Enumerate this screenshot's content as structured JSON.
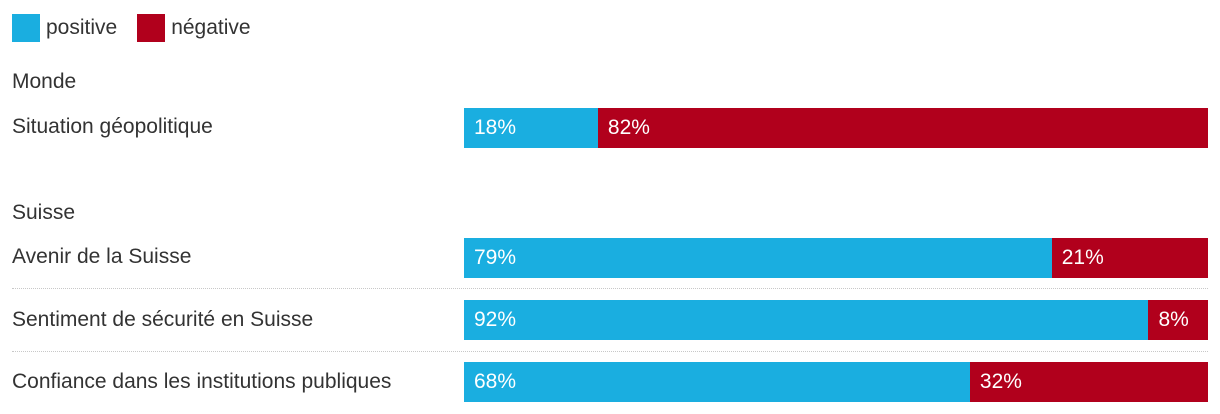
{
  "legend": [
    {
      "label": "positive",
      "color": "#1aaee0"
    },
    {
      "label": "négative",
      "color": "#b1001c"
    }
  ],
  "chart_data": {
    "type": "bar",
    "stacked": true,
    "orientation": "horizontal",
    "series_names": [
      "positive",
      "négative"
    ],
    "colors": [
      "#1aaee0",
      "#b1001c"
    ],
    "groups": [
      {
        "title": "Monde",
        "rows": [
          {
            "label": "Situation géopolitique",
            "positive": 18,
            "negative": 82,
            "positive_text": "18%",
            "negative_text": "82%"
          }
        ]
      },
      {
        "title": "Suisse",
        "rows": [
          {
            "label": "Avenir de la Suisse",
            "positive": 79,
            "negative": 21,
            "positive_text": "79%",
            "negative_text": "21%"
          },
          {
            "label": "Sentiment de sécurité en Suisse",
            "positive": 92,
            "negative": 8,
            "positive_text": "92%",
            "negative_text": "8%"
          },
          {
            "label": "Confiance dans les institutions publiques",
            "positive": 68,
            "negative": 32,
            "positive_text": "68%",
            "negative_text": "32%"
          }
        ]
      }
    ]
  }
}
